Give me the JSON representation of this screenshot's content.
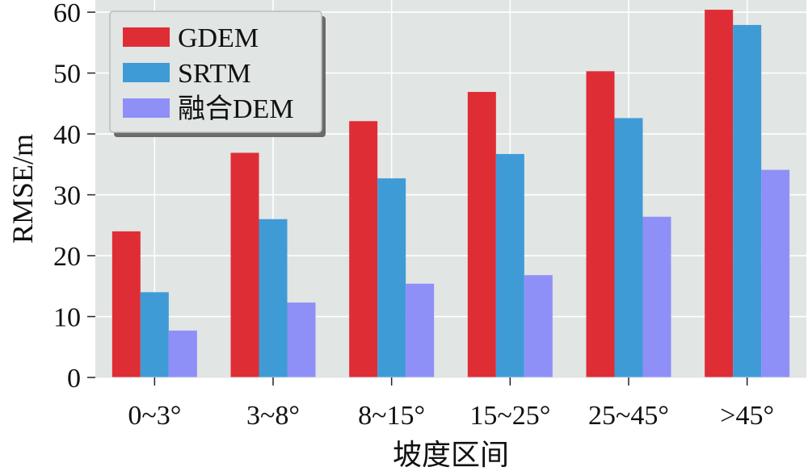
{
  "chart_data": {
    "type": "bar",
    "title": "",
    "xlabel": "坡度区间",
    "ylabel": "RMSE/m",
    "categories": [
      "0~3°",
      "3~8°",
      "8~15°",
      "15~25°",
      "25~45°",
      ">45°"
    ],
    "series": [
      {
        "name": "GDEM",
        "color": "#df2d36",
        "values": [
          24.0,
          36.9,
          42.1,
          46.9,
          50.3,
          60.4
        ]
      },
      {
        "name": "SRTM",
        "color": "#3e9bd6",
        "values": [
          14.0,
          26.0,
          32.7,
          36.7,
          42.6,
          57.9
        ]
      },
      {
        "name": "融合DEM",
        "color": "#8f8ff8",
        "values": [
          7.7,
          12.3,
          15.4,
          16.8,
          26.4,
          34.1
        ]
      }
    ],
    "ylim": [
      0,
      62
    ],
    "yticks": [
      0,
      10,
      20,
      30,
      40,
      50,
      60
    ],
    "grid": true,
    "legend_position": "top-left",
    "plot_background": "#e1e5e4",
    "grid_color": "#ffffff"
  }
}
